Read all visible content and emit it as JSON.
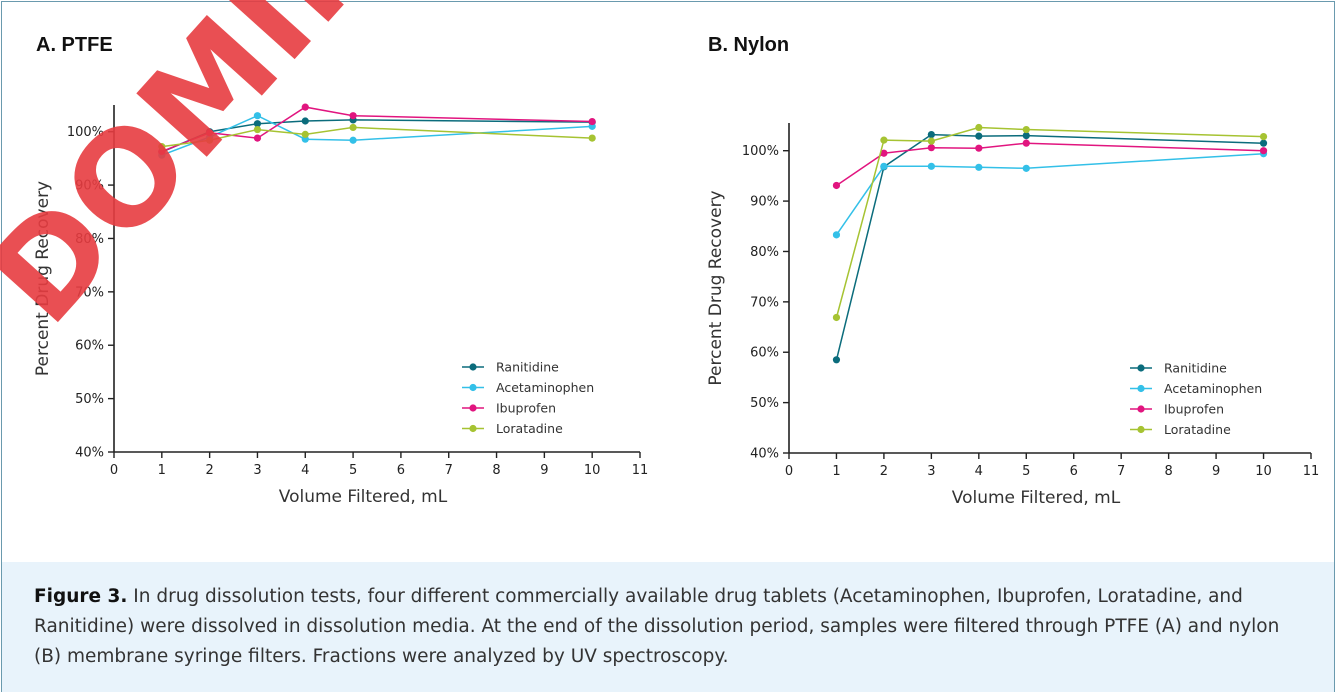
{
  "watermark": "DOMINIQUE",
  "caption": {
    "label": "Figure 3.",
    "text": " In drug dissolution tests, four different commercially available drug tablets (Acetaminophen, Ibuprofen, Loratadine, and Ranitidine) were dissolved in dissolution media. At the end of the dissolution period, samples were filtered through PTFE (A) and nylon (B) membrane syringe filters. Fractions were analyzed by UV spectroscopy."
  },
  "colors": {
    "Ranitidine": "#0b6c7c",
    "Acetaminophen": "#33c0e8",
    "Ibuprofen": "#e1157f",
    "Loratadine": "#a6c332"
  },
  "chart_data": [
    {
      "type": "line",
      "title": "A. PTFE",
      "xlabel": "Volume Filtered, mL",
      "ylabel": "Percent Drug Recovery",
      "xlim": [
        0,
        11
      ],
      "ylim": [
        40,
        105
      ],
      "x_ticks": [
        0,
        1,
        2,
        3,
        4,
        5,
        6,
        7,
        8,
        9,
        10,
        11
      ],
      "y_ticks": [
        "40%",
        "50%",
        "60%",
        "70%",
        "80%",
        "90%",
        "100%"
      ],
      "legend": "bottom-right",
      "x": [
        1,
        2,
        3,
        4,
        5,
        10
      ],
      "series": [
        {
          "name": "Ranitidine",
          "values": [
            96.2,
            100,
            101.5,
            102,
            102.2,
            101.8
          ]
        },
        {
          "name": "Acetaminophen",
          "values": [
            95.6,
            99,
            103,
            98.6,
            98.4,
            101
          ]
        },
        {
          "name": "Ibuprofen",
          "values": [
            96.3,
            99.8,
            98.8,
            104.6,
            103,
            101.9
          ]
        },
        {
          "name": "Loratadine",
          "values": [
            97.2,
            98.4,
            100.4,
            99.5,
            100.8,
            98.8
          ]
        }
      ]
    },
    {
      "type": "line",
      "title": "B. Nylon",
      "xlabel": "Volume Filtered, mL",
      "ylabel": "Percent Drug Recovery",
      "xlim": [
        0,
        11
      ],
      "ylim": [
        40,
        105.5
      ],
      "x_ticks": [
        0,
        1,
        2,
        3,
        4,
        5,
        6,
        7,
        8,
        9,
        10,
        11
      ],
      "y_ticks": [
        "40%",
        "50%",
        "60%",
        "70%",
        "80%",
        "90%",
        "100%"
      ],
      "legend": "bottom-right",
      "x": [
        1,
        2,
        3,
        4,
        5,
        10
      ],
      "series": [
        {
          "name": "Ranitidine",
          "values": [
            58.5,
            96.8,
            103.2,
            102.9,
            103,
            101.5
          ]
        },
        {
          "name": "Acetaminophen",
          "values": [
            83.3,
            96.9,
            96.9,
            96.7,
            96.5,
            99.4
          ]
        },
        {
          "name": "Ibuprofen",
          "values": [
            93.1,
            99.5,
            100.6,
            100.5,
            101.5,
            100
          ]
        },
        {
          "name": "Loratadine",
          "values": [
            66.9,
            102.1,
            101.9,
            104.6,
            104.2,
            102.8
          ]
        }
      ]
    }
  ]
}
